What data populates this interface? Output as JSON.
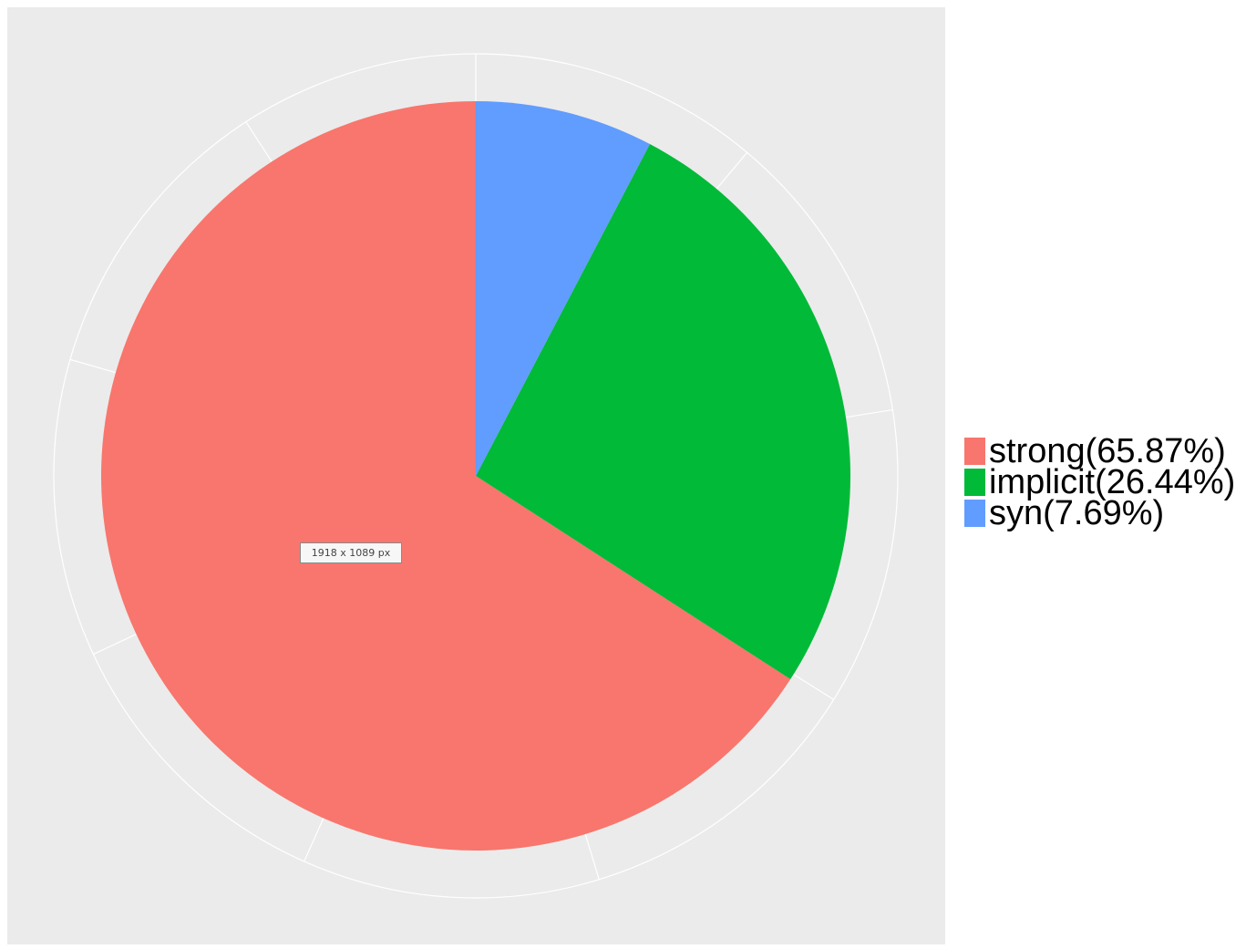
{
  "chart_data": {
    "type": "pie",
    "title": "",
    "slices": [
      {
        "label": "strong(65.87%)",
        "value": 65.87,
        "color": "#F8766D"
      },
      {
        "label": "implicit(26.44%)",
        "value": 26.44,
        "color": "#00BA38"
      },
      {
        "label": "syn(7.69%)",
        "value": 7.69,
        "color": "#619CFF"
      }
    ],
    "start": "12 o'clock",
    "direction": "counterclockwise",
    "panel_background": "#EBEBEB",
    "grid": true,
    "legend_position": "right"
  },
  "tooltip": {
    "text": "1918 x 1089 px"
  }
}
